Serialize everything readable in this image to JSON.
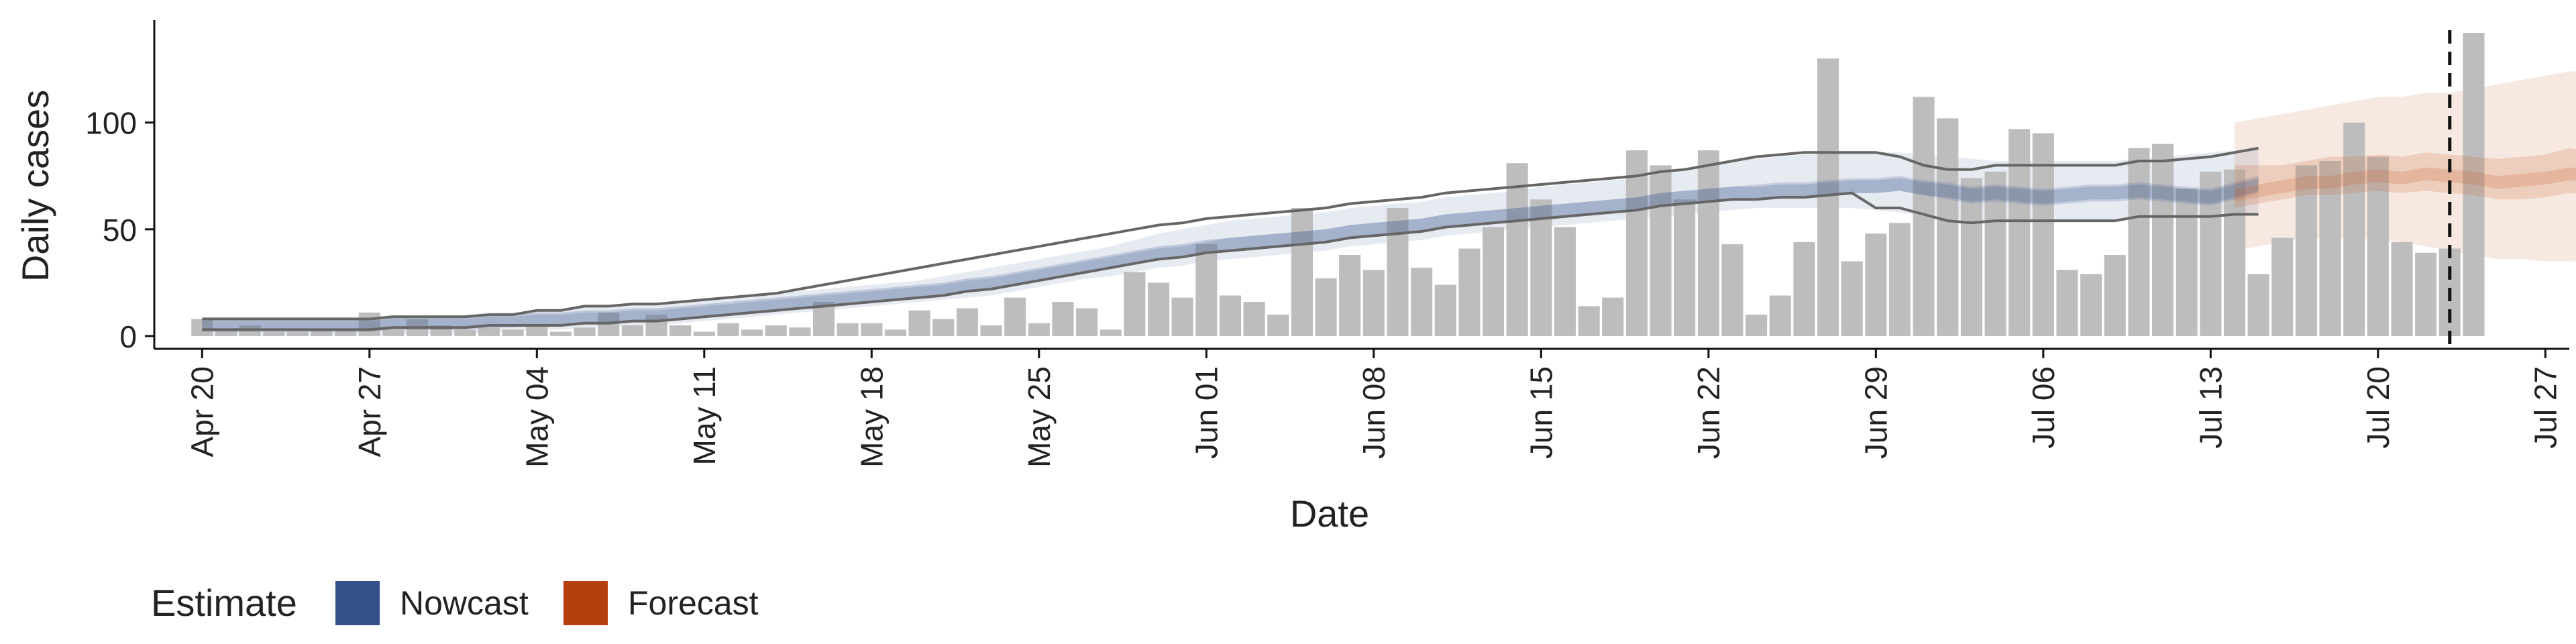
{
  "chart_data": {
    "type": "bar",
    "xlabel": "Date",
    "ylabel": "Daily cases",
    "x_start": "2020-04-20",
    "x_range": [
      "2020-04-18",
      "2020-07-28"
    ],
    "ylim": [
      -6,
      148
    ],
    "x_ticks": [
      {
        "date": "2020-04-20",
        "label": "Apr 20"
      },
      {
        "date": "2020-04-27",
        "label": "Apr 27"
      },
      {
        "date": "2020-05-04",
        "label": "May 04"
      },
      {
        "date": "2020-05-11",
        "label": "May 11"
      },
      {
        "date": "2020-05-18",
        "label": "May 18"
      },
      {
        "date": "2020-05-25",
        "label": "May 25"
      },
      {
        "date": "2020-06-01",
        "label": "Jun 01"
      },
      {
        "date": "2020-06-08",
        "label": "Jun 08"
      },
      {
        "date": "2020-06-15",
        "label": "Jun 15"
      },
      {
        "date": "2020-06-22",
        "label": "Jun 22"
      },
      {
        "date": "2020-06-29",
        "label": "Jun 29"
      },
      {
        "date": "2020-07-06",
        "label": "Jul 06"
      },
      {
        "date": "2020-07-13",
        "label": "Jul 13"
      },
      {
        "date": "2020-07-20",
        "label": "Jul 20"
      },
      {
        "date": "2020-07-27",
        "label": "Jul 27"
      }
    ],
    "y_ticks": [
      0,
      50,
      100
    ],
    "reported_cases": [
      8,
      3,
      5,
      2,
      2,
      3,
      3,
      11,
      3,
      8,
      5,
      3,
      4,
      3,
      5,
      2,
      4,
      11,
      5,
      10,
      5,
      2,
      6,
      3,
      5,
      4,
      16,
      6,
      6,
      3,
      12,
      8,
      13,
      5,
      18,
      6,
      16,
      13,
      3,
      30,
      25,
      18,
      43,
      19,
      16,
      10,
      60,
      27,
      38,
      31,
      60,
      32,
      24,
      41,
      51,
      81,
      64,
      51,
      14,
      18,
      87,
      80,
      64,
      87,
      43,
      10,
      19,
      44,
      130,
      35,
      48,
      53,
      112,
      102,
      74,
      77,
      97,
      95,
      31,
      29,
      38,
      88,
      90,
      69,
      77,
      78,
      29,
      46,
      80,
      82,
      100,
      84,
      44,
      39,
      41,
      142
    ],
    "nowcast": {
      "end_date": "2020-07-13",
      "median": [
        5,
        5,
        5,
        5,
        5,
        5,
        5,
        5,
        6,
        6,
        6,
        6,
        7,
        7,
        8,
        8,
        9,
        9,
        10,
        10,
        11,
        12,
        13,
        14,
        15,
        16,
        17,
        18,
        19,
        20,
        21,
        22,
        24,
        25,
        27,
        29,
        31,
        33,
        35,
        37,
        39,
        40,
        42,
        43,
        44,
        45,
        46,
        47,
        49,
        50,
        51,
        52,
        54,
        55,
        56,
        57,
        58,
        59,
        60,
        61,
        62,
        64,
        65,
        66,
        67,
        67,
        68,
        68,
        69,
        70,
        70,
        71,
        69,
        68,
        66,
        67,
        66,
        65,
        66,
        67,
        67,
        68,
        67,
        66,
        65,
        68,
        71
      ],
      "inner": {
        "lower": [
          3,
          3,
          3,
          3,
          3,
          3,
          3,
          3,
          4,
          4,
          4,
          4,
          5,
          5,
          5,
          5,
          6,
          6,
          7,
          7,
          8,
          9,
          10,
          11,
          12,
          13,
          14,
          15,
          16,
          17,
          18,
          19,
          21,
          22,
          24,
          26,
          28,
          30,
          32,
          34,
          36,
          37,
          39,
          40,
          41,
          42,
          43,
          44,
          46,
          47,
          48,
          49,
          51,
          52,
          53,
          54,
          55,
          56,
          57,
          58,
          59,
          61,
          62,
          63,
          64,
          64,
          65,
          65,
          66,
          67,
          67,
          68,
          66,
          64,
          62,
          63,
          62,
          61,
          62,
          63,
          63,
          64,
          63,
          62,
          61,
          64,
          67
        ],
        "upper": [
          7,
          7,
          7,
          7,
          7,
          7,
          7,
          7,
          8,
          8,
          8,
          8,
          9,
          9,
          10,
          10,
          11,
          11,
          12,
          12,
          13,
          14,
          15,
          16,
          17,
          18,
          19,
          20,
          21,
          22,
          23,
          24,
          26,
          27,
          29,
          31,
          33,
          35,
          37,
          39,
          41,
          42,
          44,
          46,
          47,
          48,
          49,
          50,
          52,
          53,
          54,
          55,
          57,
          58,
          59,
          60,
          61,
          62,
          63,
          64,
          65,
          67,
          68,
          69,
          70,
          71,
          72,
          72,
          73,
          74,
          74,
          75,
          73,
          72,
          70,
          71,
          70,
          69,
          70,
          71,
          71,
          72,
          71,
          70,
          69,
          72,
          75
        ]
      },
      "outer": {
        "lower": [
          0,
          0,
          0,
          0,
          0,
          0,
          0,
          0,
          1,
          1,
          1,
          1,
          2,
          2,
          3,
          3,
          4,
          4,
          5,
          5,
          6,
          7,
          8,
          9,
          10,
          11,
          12,
          13,
          14,
          15,
          16,
          17,
          18,
          19,
          21,
          23,
          25,
          27,
          28,
          30,
          32,
          33,
          35,
          36,
          37,
          38,
          39,
          40,
          42,
          43,
          44,
          45,
          47,
          48,
          49,
          50,
          51,
          52,
          53,
          54,
          55,
          56,
          57,
          58,
          59,
          60,
          60,
          60,
          60,
          60,
          59,
          58,
          56,
          54,
          53,
          54,
          54,
          54,
          54,
          54,
          54,
          56,
          56,
          56,
          56,
          57,
          58
        ],
        "upper": [
          9,
          9,
          9,
          9,
          9,
          9,
          9,
          9,
          10,
          10,
          10,
          10,
          11,
          11,
          12,
          12,
          14,
          14,
          15,
          15,
          16,
          17,
          18,
          19,
          20,
          21,
          22,
          23,
          24,
          25,
          26,
          28,
          30,
          32,
          34,
          36,
          38,
          40,
          42,
          45,
          48,
          50,
          52,
          54,
          55,
          56,
          57,
          58,
          60,
          61,
          62,
          63,
          65,
          66,
          67,
          68,
          70,
          71,
          72,
          73,
          74,
          76,
          78,
          80,
          82,
          83,
          84,
          85,
          85,
          86,
          86,
          86,
          85,
          84,
          83,
          82,
          82,
          82,
          82,
          82,
          82,
          83,
          84,
          85,
          86,
          87,
          88
        ]
      },
      "line_lower": [
        3,
        3,
        3,
        3,
        3,
        3,
        3,
        3,
        4,
        4,
        4,
        4,
        5,
        5,
        5,
        5,
        6,
        6,
        7,
        7,
        8,
        9,
        10,
        11,
        12,
        13,
        14,
        15,
        16,
        17,
        18,
        19,
        21,
        22,
        24,
        26,
        28,
        30,
        32,
        34,
        36,
        37,
        39,
        40,
        41,
        42,
        43,
        44,
        46,
        47,
        48,
        49,
        51,
        52,
        53,
        54,
        55,
        56,
        57,
        58,
        59,
        61,
        62,
        63,
        64,
        64,
        65,
        65,
        66,
        67,
        60,
        60,
        57,
        54,
        53,
        54,
        54,
        54,
        54,
        54,
        54,
        56,
        56,
        56,
        56,
        57,
        57
      ],
      "line_upper": [
        8,
        8,
        8,
        8,
        8,
        8,
        8,
        8,
        9,
        9,
        9,
        9,
        10,
        10,
        12,
        12,
        14,
        14,
        15,
        15,
        16,
        17,
        18,
        19,
        20,
        22,
        24,
        26,
        28,
        30,
        32,
        34,
        36,
        38,
        40,
        42,
        44,
        46,
        48,
        50,
        52,
        53,
        55,
        56,
        57,
        58,
        59,
        60,
        62,
        63,
        64,
        65,
        67,
        68,
        69,
        70,
        71,
        72,
        73,
        74,
        75,
        77,
        78,
        80,
        82,
        84,
        85,
        86,
        86,
        86,
        86,
        84,
        80,
        78,
        78,
        80,
        80,
        80,
        80,
        80,
        80,
        82,
        82,
        83,
        84,
        86,
        88
      ]
    },
    "forecast": {
      "start_date": "2020-07-14",
      "median": [
        66,
        68,
        70,
        72,
        72,
        74,
        75,
        74,
        76,
        75,
        74,
        72,
        73,
        74,
        76,
        75,
        70,
        72,
        76,
        70
      ],
      "inner": {
        "lower": [
          60,
          62,
          64,
          66,
          66,
          67,
          68,
          67,
          68,
          67,
          66,
          64,
          64,
          65,
          67,
          66,
          60,
          62,
          66,
          58
        ],
        "upper": [
          80,
          80,
          80,
          82,
          84,
          84,
          85,
          84,
          86,
          85,
          84,
          83,
          84,
          85,
          88,
          86,
          86,
          88,
          90,
          86
        ]
      },
      "outer": {
        "lower": [
          40,
          42,
          44,
          46,
          46,
          46,
          45,
          44,
          42,
          40,
          38,
          36,
          36,
          35,
          35,
          34,
          34,
          34,
          34,
          32
        ],
        "upper": [
          100,
          102,
          104,
          106,
          108,
          110,
          112,
          112,
          114,
          114,
          116,
          118,
          120,
          122,
          124,
          124,
          128,
          126,
          130,
          134
        ]
      }
    },
    "vertical_line_date": "2020-07-23",
    "legend": {
      "title": "Estimate",
      "items": [
        {
          "label": "Nowcast",
          "color": "#33508a"
        },
        {
          "label": "Forecast",
          "color": "#b5400f"
        }
      ]
    },
    "colors": {
      "bar": "#bdbdbd",
      "nowcast": "#33508a",
      "forecast": "#c8652f",
      "line": "#666666"
    }
  }
}
